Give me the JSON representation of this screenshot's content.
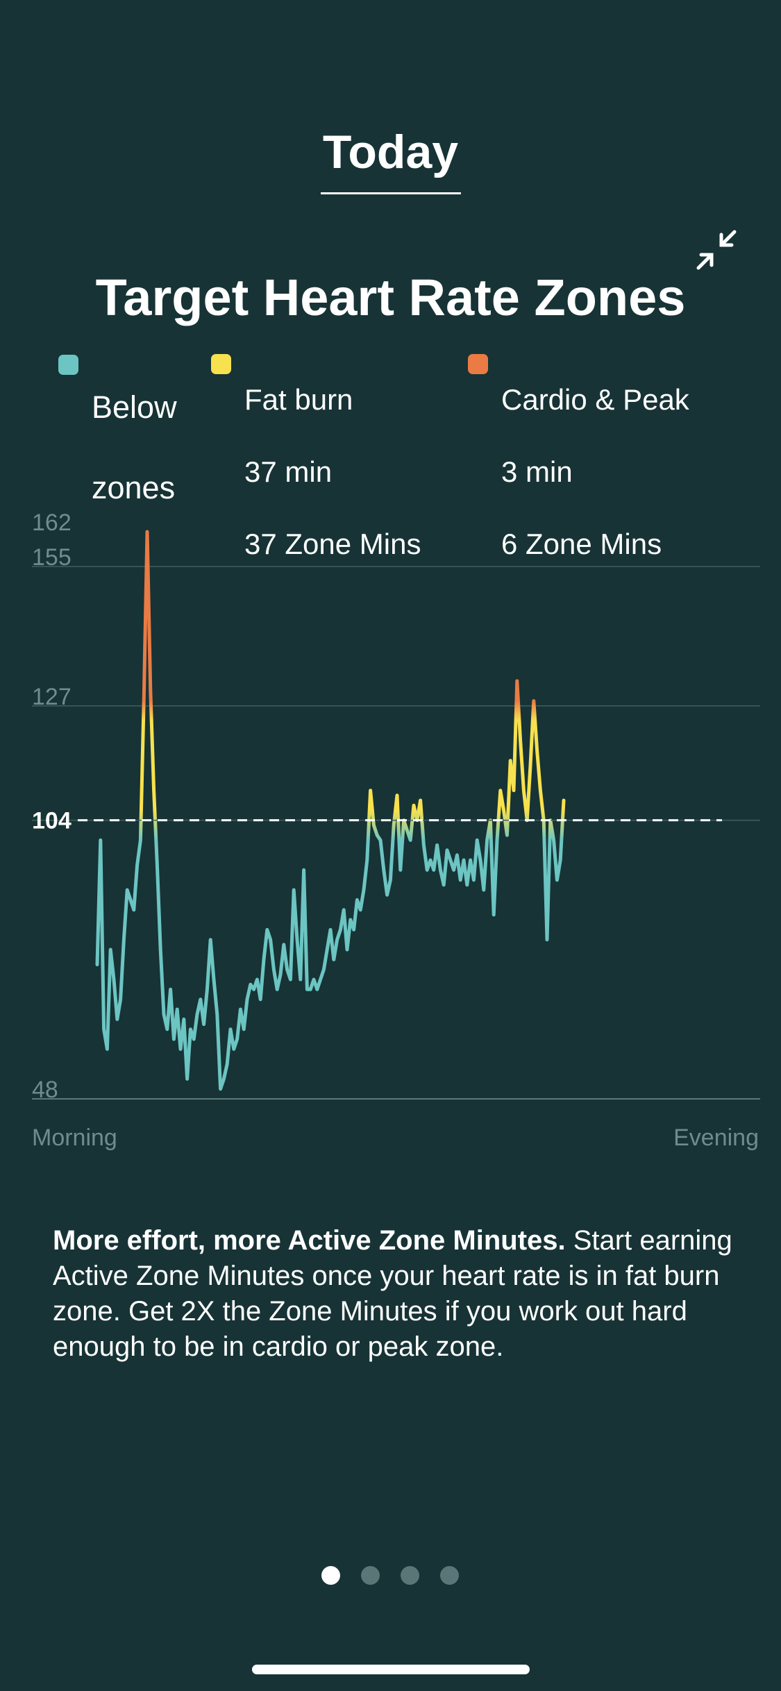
{
  "header": {
    "tab_title": "Today"
  },
  "card": {
    "title": "Target Heart Rate Zones",
    "legend": [
      {
        "name": "below",
        "color": "#6cc5c2",
        "lines": [
          "Below",
          "zones"
        ]
      },
      {
        "name": "fatburn",
        "color": "#f7e14e",
        "lines": [
          "Fat burn",
          "37 min",
          "37 Zone Mins"
        ]
      },
      {
        "name": "cardio",
        "color": "#ea7b45",
        "lines": [
          "Cardio & Peak",
          "3 min",
          "6 Zone Mins"
        ]
      }
    ]
  },
  "chart_data": {
    "type": "line",
    "xlabel_start": "Morning",
    "xlabel_end": "Evening",
    "y_ticks": [
      162,
      155,
      127,
      48
    ],
    "threshold": {
      "value": 104,
      "label": "104"
    },
    "ylim": [
      48,
      162
    ],
    "grid": true,
    "zone_colors": {
      "below": "#6cc5c2",
      "fatburn": "#f7e14e",
      "cardio": "#ea7b45"
    },
    "series": [
      {
        "values": [
          75,
          100,
          62,
          58,
          78,
          72,
          64,
          68,
          80,
          90,
          88,
          86,
          95,
          100,
          128,
          162,
          130,
          110,
          95,
          78,
          65,
          62,
          70,
          60,
          66,
          58,
          64,
          52,
          62,
          60,
          65,
          68,
          63,
          70,
          80,
          72,
          65,
          50,
          52,
          55,
          62,
          58,
          60,
          66,
          62,
          68,
          71,
          70,
          72,
          68,
          76,
          82,
          80,
          74,
          70,
          73,
          79,
          74,
          72,
          90,
          80,
          72,
          94,
          70,
          70,
          72,
          70,
          72,
          74,
          78,
          82,
          76,
          80,
          82,
          86,
          78,
          84,
          82,
          88,
          86,
          90,
          96,
          110,
          103,
          101,
          100,
          94,
          89,
          92,
          103,
          109,
          94,
          104,
          102,
          100,
          107,
          104,
          108,
          99,
          94,
          96,
          94,
          99,
          94,
          91,
          98,
          96,
          94,
          97,
          92,
          96,
          91,
          96,
          92,
          100,
          96,
          90,
          100,
          104,
          85,
          100,
          110,
          106,
          101,
          116,
          110,
          132,
          120,
          110,
          104,
          115,
          128,
          118,
          110,
          104,
          80,
          104,
          100,
          92,
          96,
          108
        ]
      }
    ]
  },
  "summary": {
    "bold": "More effort, more Active Zone Minutes.",
    "text": " Start earning Active Zone Minutes once your heart rate is in fat burn zone. Get 2X the Zone Minutes if you work out hard enough to be in cardio or peak zone."
  },
  "pager": {
    "count": 4,
    "active": 0
  }
}
